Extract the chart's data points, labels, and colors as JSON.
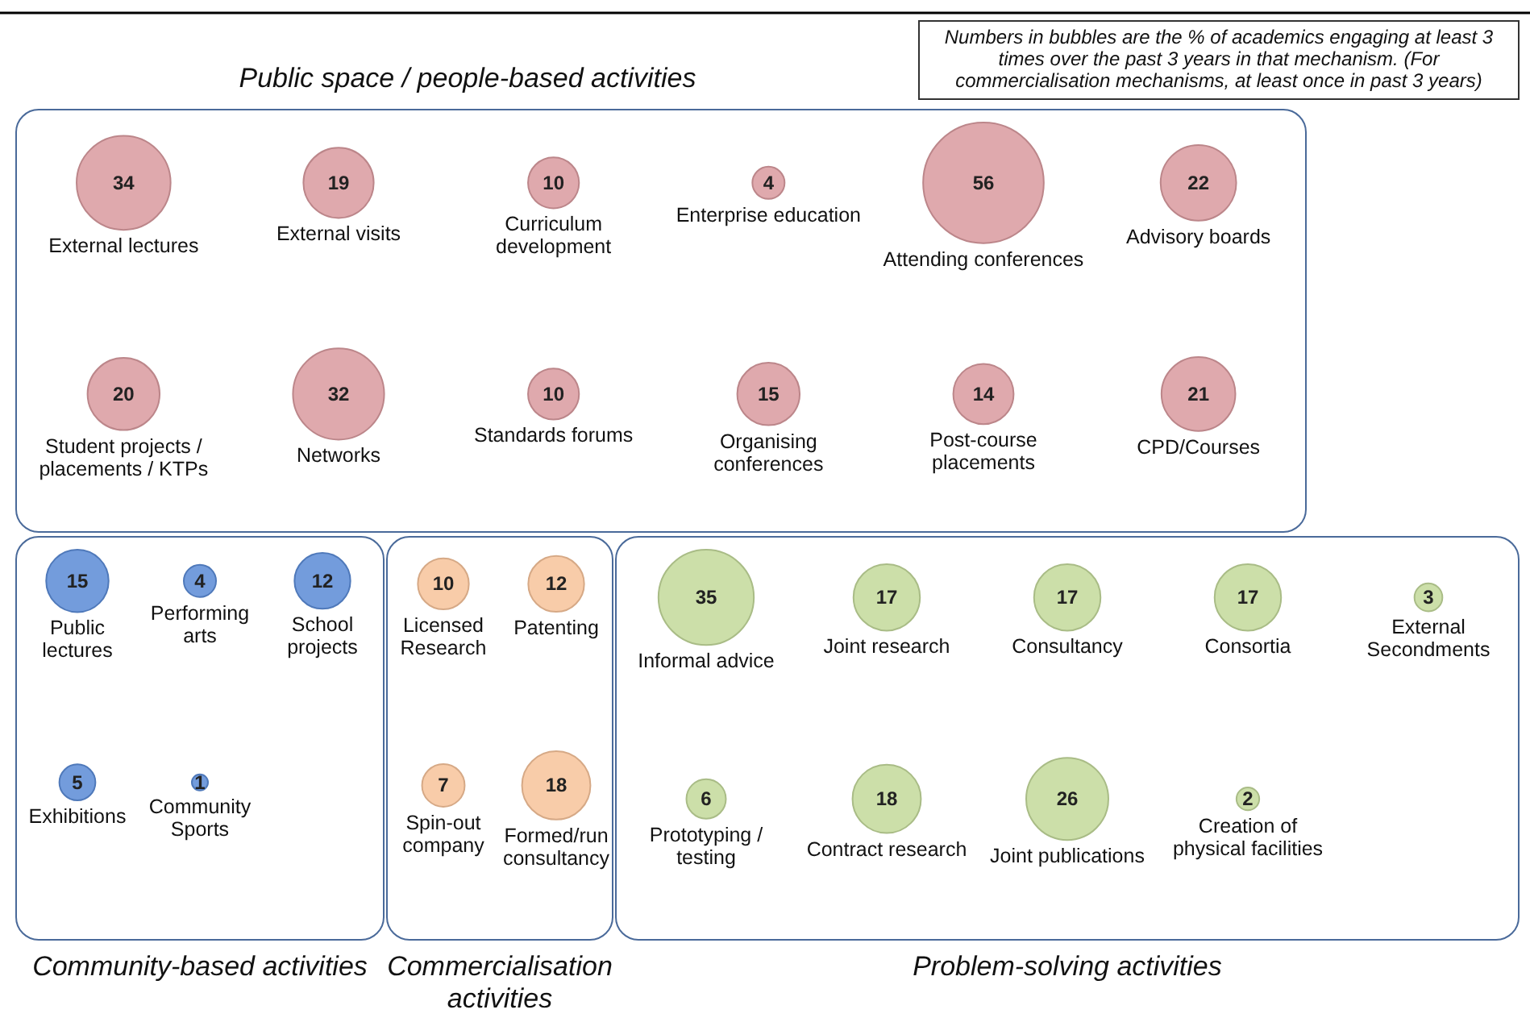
{
  "chart_data": [
    {
      "type": "other",
      "data_labels": true,
      "title": "Public space / people-based activities",
      "color": "#d99a9f",
      "annotations": [
        "Numbers in bubbles are the % of academics engaging at least 3 times over the past 3 years in that mechanism.  (For commercialisation mechanisms, at least once in past 3 years)"
      ],
      "categories": [
        "External lectures",
        "External visits",
        "Curriculum development",
        "Enterprise education",
        "Attending conferences",
        "Advisory boards",
        "Student projects / placements / KTPs",
        "Networks",
        "Standards forums",
        "Organising conferences",
        "Post-course placements",
        "CPD/Courses"
      ],
      "values": [
        34,
        19,
        10,
        4,
        56,
        22,
        20,
        32,
        10,
        15,
        14,
        21
      ]
    },
    {
      "type": "other",
      "data_labels": true,
      "title": "Community-based activities",
      "color": "#5b8bd6",
      "categories": [
        "Public lectures",
        "Performing arts",
        "School projects",
        "Exhibitions",
        "Community Sports"
      ],
      "values": [
        15,
        4,
        12,
        5,
        1
      ]
    },
    {
      "type": "other",
      "data_labels": true,
      "title": "Commercialisation activities",
      "color": "#f7c39a",
      "categories": [
        "Licensed Research",
        "Patenting",
        "Spin-out company",
        "Formed/run consultancy"
      ],
      "values": [
        10,
        12,
        7,
        18
      ]
    },
    {
      "type": "other",
      "data_labels": true,
      "title": "Problem-solving activities",
      "color": "#c3d99a",
      "categories": [
        "Informal advice",
        "Joint research",
        "Consultancy",
        "Consortia",
        "External Secondments",
        "Prototyping / testing",
        "Contract research",
        "Joint publications",
        "Creation of physical facilities"
      ],
      "values": [
        35,
        17,
        17,
        17,
        3,
        6,
        18,
        26,
        2
      ]
    }
  ]
}
